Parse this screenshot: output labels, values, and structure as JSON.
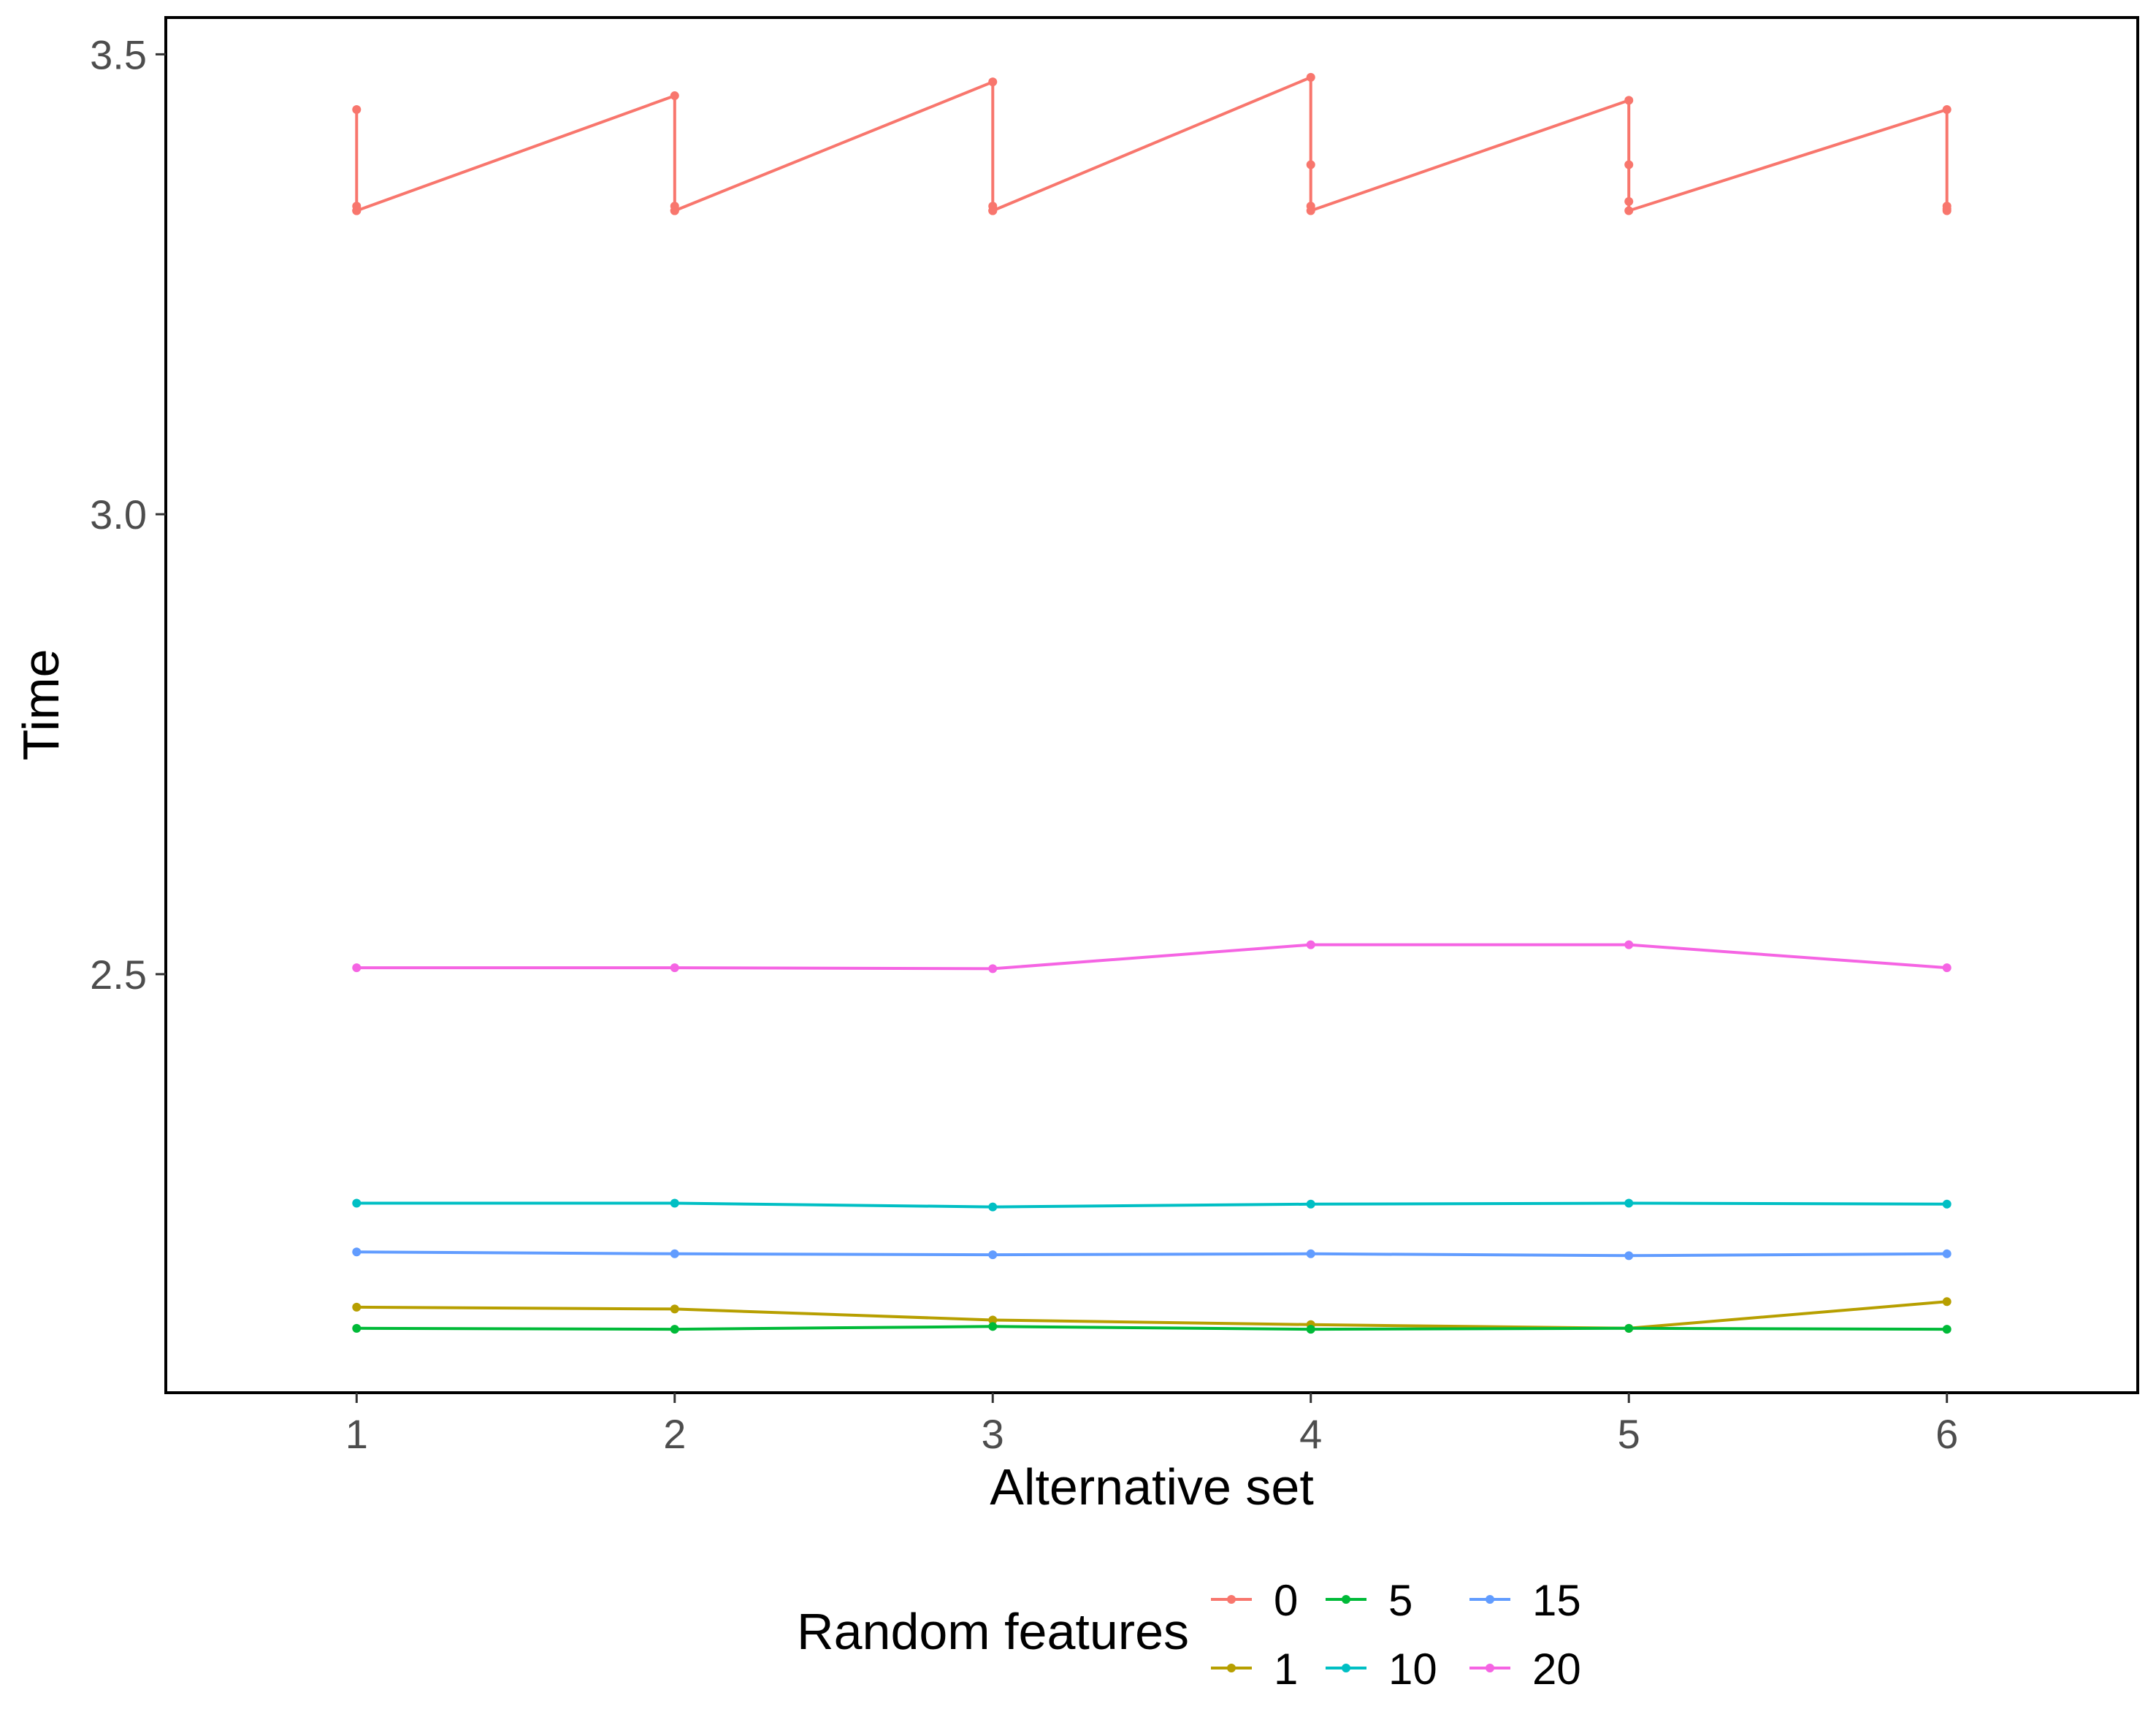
{
  "chart_data": {
    "type": "line",
    "xlabel": "Alternative set",
    "ylabel": "Time",
    "x_ticks": [
      1,
      2,
      3,
      4,
      5,
      6
    ],
    "y_ticks": [
      2.5,
      3.0,
      3.5
    ],
    "y_tick_labels": [
      "2.5",
      "3.0",
      "3.5"
    ],
    "xlim": [
      0.4,
      6.6
    ],
    "ylim": [
      2.045,
      3.54
    ],
    "grid": false,
    "legend": {
      "title": "Random features",
      "position": "bottom"
    },
    "series": [
      {
        "name": "0",
        "color": "#F8766D",
        "points": [
          [
            1,
            3.44
          ],
          [
            1,
            3.335
          ],
          [
            1,
            3.33
          ],
          [
            1,
            3.33
          ],
          [
            2,
            3.455
          ],
          [
            2,
            3.335
          ],
          [
            2,
            3.33
          ],
          [
            2,
            3.33
          ],
          [
            3,
            3.47
          ],
          [
            3,
            3.335
          ],
          [
            3,
            3.33
          ],
          [
            3,
            3.33
          ],
          [
            4,
            3.475
          ],
          [
            4,
            3.38
          ],
          [
            4,
            3.335
          ],
          [
            4,
            3.33
          ],
          [
            5,
            3.45
          ],
          [
            5,
            3.38
          ],
          [
            5,
            3.34
          ],
          [
            5,
            3.33
          ],
          [
            6,
            3.44
          ],
          [
            6,
            3.335
          ],
          [
            6,
            3.332
          ],
          [
            6,
            3.33
          ]
        ]
      },
      {
        "name": "1",
        "color": "#B79F00",
        "points": [
          [
            1,
            2.138
          ],
          [
            2,
            2.136
          ],
          [
            3,
            2.124
          ],
          [
            4,
            2.119
          ],
          [
            5,
            2.115
          ],
          [
            6,
            2.144
          ]
        ]
      },
      {
        "name": "5",
        "color": "#00BA38",
        "points": [
          [
            1,
            2.115
          ],
          [
            2,
            2.114
          ],
          [
            3,
            2.117
          ],
          [
            4,
            2.114
          ],
          [
            5,
            2.115
          ],
          [
            6,
            2.114
          ]
        ]
      },
      {
        "name": "10",
        "color": "#00BFC4",
        "points": [
          [
            1,
            2.251
          ],
          [
            2,
            2.251
          ],
          [
            3,
            2.247
          ],
          [
            4,
            2.25
          ],
          [
            5,
            2.251
          ],
          [
            6,
            2.25
          ]
        ]
      },
      {
        "name": "15",
        "color": "#619CFF",
        "points": [
          [
            1,
            2.198
          ],
          [
            2,
            2.196
          ],
          [
            3,
            2.195
          ],
          [
            4,
            2.196
          ],
          [
            5,
            2.194
          ],
          [
            6,
            2.196
          ]
        ]
      },
      {
        "name": "20",
        "color": "#F564E3",
        "points": [
          [
            1,
            2.507
          ],
          [
            2,
            2.507
          ],
          [
            3,
            2.506
          ],
          [
            4,
            2.532
          ],
          [
            5,
            2.532
          ],
          [
            6,
            2.507
          ]
        ]
      }
    ]
  }
}
